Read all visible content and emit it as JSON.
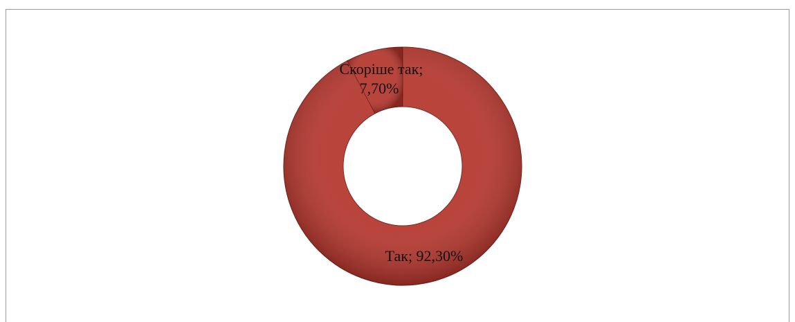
{
  "chart_data": {
    "type": "donut",
    "values": [
      92.3,
      7.7
    ],
    "value_labels": [
      [
        "Так; 92,30%"
      ],
      [
        "Скоріше так;",
        "7,70%"
      ]
    ],
    "colors": [
      "#b3342b",
      "#b3342b"
    ]
  }
}
